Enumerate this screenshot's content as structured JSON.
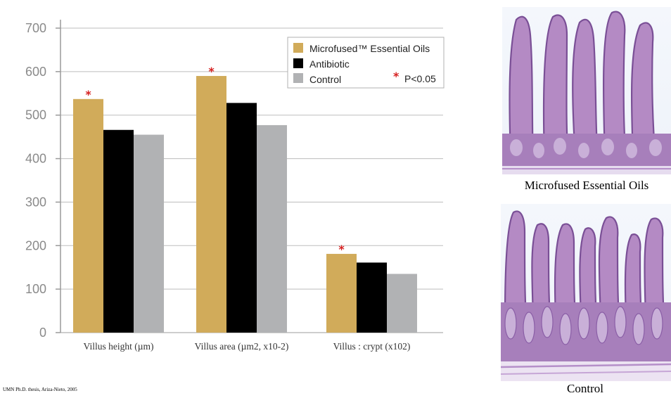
{
  "chart_data": {
    "type": "bar",
    "categories": [
      "Villus height (µm)",
      "Villus area (µm2, x10-2)",
      "Villus : crypt (x102)"
    ],
    "series": [
      {
        "name": "Microfused™ Essential Oils",
        "values": [
          537,
          590,
          181
        ],
        "color": "#d1ab5a"
      },
      {
        "name": "Antibiotic",
        "values": [
          466,
          528,
          161
        ],
        "color": "#000000"
      },
      {
        "name": "Control",
        "values": [
          455,
          477,
          135
        ],
        "color": "#b1b2b4"
      }
    ],
    "significant": [
      true,
      true,
      true
    ],
    "significance_note": "P<0.05",
    "significance_symbol": "*",
    "yticks": [
      0,
      100,
      200,
      300,
      400,
      500,
      600,
      700
    ],
    "ylim": [
      0,
      700
    ],
    "grid": true,
    "legend_position": "top-right",
    "title": "",
    "xlabel": "",
    "ylabel": ""
  },
  "images": {
    "top_caption": "Microfused Essential Oils",
    "bottom_caption": "Control"
  },
  "source_note": "UMN Ph.D. thesis, Ariza-Nieto, 2005"
}
